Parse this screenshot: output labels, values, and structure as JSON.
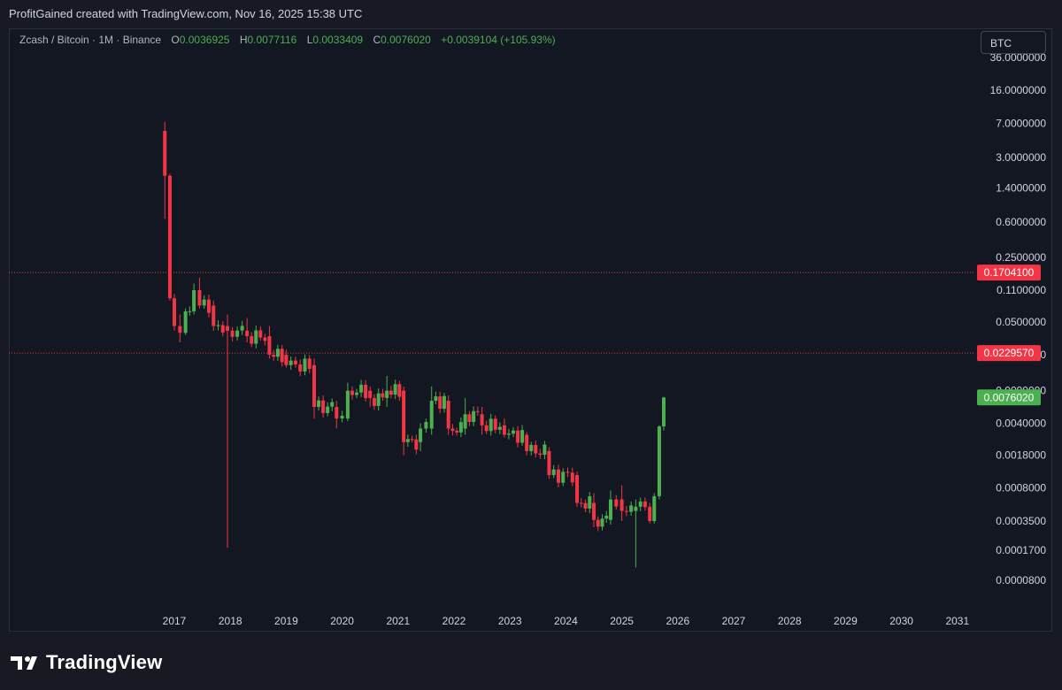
{
  "header": {
    "attribution": "ProfitGained created with TradingView.com, Nov 16, 2025 15:38 UTC"
  },
  "legend": {
    "symbol": "Zcash / Bitcoin · 1M · Binance",
    "o_label": "O",
    "o_value": "0.0036925",
    "h_label": "H",
    "h_value": "0.0077116",
    "l_label": "L",
    "l_value": "0.0033409",
    "c_label": "C",
    "c_value": "0.0076020",
    "change": "+0.0039104 (+105.93%)"
  },
  "currency_button": "BTC",
  "footer": {
    "brand": "TradingView"
  },
  "colors": {
    "up": "#4caf50",
    "down": "#f23645",
    "background": "#131722",
    "text": "#d1d4dc"
  },
  "chart_data": {
    "type": "candlestick",
    "scale": "log",
    "x_axis": {
      "ticks": [
        "2017",
        "2018",
        "2019",
        "2020",
        "2021",
        "2022",
        "2023",
        "2024",
        "2025",
        "2026",
        "2027",
        "2028",
        "2029",
        "2030",
        "2031"
      ]
    },
    "y_axis": {
      "ticks": [
        "36.0000000",
        "16.0000000",
        "7.0000000",
        "3.0000000",
        "1.4000000",
        "0.6000000",
        "0.2500000",
        "0.1100000",
        "0.0500000",
        "0.0220000",
        "0.0090000",
        "0.0040000",
        "0.0018000",
        "0.0008000",
        "0.0003500",
        "0.0001700",
        "0.0000800"
      ]
    },
    "horizontal_lines": [
      {
        "value": 0.17041,
        "label": "0.1704100",
        "color": "#f23645"
      },
      {
        "value": 0.022957,
        "label": "0.0229570",
        "color": "#f23645"
      }
    ],
    "last_price": {
      "value": 0.007602,
      "label": "0.0076020",
      "color": "#4caf50"
    },
    "anchors": [
      {
        "t": 2016.83,
        "o": 5.8,
        "h": 7.3,
        "l": 0.65,
        "c": 1.9
      },
      {
        "t": 2016.92,
        "o": 1.9,
        "h": 2.0,
        "l": 0.085,
        "c": 0.09
      },
      {
        "t": 2017.0,
        "o": 0.09,
        "h": 0.1,
        "l": 0.04,
        "c": 0.045
      },
      {
        "t": 2017.1,
        "o": 0.045,
        "h": 0.06,
        "l": 0.03,
        "c": 0.038
      },
      {
        "t": 2017.2,
        "o": 0.038,
        "h": 0.07,
        "l": 0.036,
        "c": 0.065
      },
      {
        "t": 2017.35,
        "o": 0.065,
        "h": 0.13,
        "l": 0.06,
        "c": 0.11
      },
      {
        "t": 2017.45,
        "o": 0.11,
        "h": 0.15,
        "l": 0.07,
        "c": 0.075
      },
      {
        "t": 2017.7,
        "o": 0.075,
        "h": 0.085,
        "l": 0.04,
        "c": 0.045
      },
      {
        "t": 2017.95,
        "o": 0.045,
        "h": 0.06,
        "l": 0.00018,
        "c": 0.04
      },
      {
        "t": 2018.3,
        "o": 0.04,
        "h": 0.055,
        "l": 0.03,
        "c": 0.035
      },
      {
        "t": 2018.7,
        "o": 0.035,
        "h": 0.045,
        "l": 0.02,
        "c": 0.022
      },
      {
        "t": 2019.0,
        "o": 0.022,
        "h": 0.025,
        "l": 0.016,
        "c": 0.017
      },
      {
        "t": 2019.5,
        "o": 0.017,
        "h": 0.02,
        "l": 0.0045,
        "c": 0.006
      },
      {
        "t": 2019.9,
        "o": 0.006,
        "h": 0.007,
        "l": 0.0035,
        "c": 0.0045
      },
      {
        "t": 2020.1,
        "o": 0.0045,
        "h": 0.011,
        "l": 0.0042,
        "c": 0.009
      },
      {
        "t": 2020.5,
        "o": 0.009,
        "h": 0.01,
        "l": 0.006,
        "c": 0.0075
      },
      {
        "t": 2020.8,
        "o": 0.0075,
        "h": 0.013,
        "l": 0.006,
        "c": 0.009
      },
      {
        "t": 2021.1,
        "o": 0.009,
        "h": 0.01,
        "l": 0.0018,
        "c": 0.0025
      },
      {
        "t": 2021.4,
        "o": 0.0025,
        "h": 0.004,
        "l": 0.002,
        "c": 0.0035
      },
      {
        "t": 2021.6,
        "o": 0.0035,
        "h": 0.01,
        "l": 0.003,
        "c": 0.007
      },
      {
        "t": 2021.9,
        "o": 0.007,
        "h": 0.008,
        "l": 0.003,
        "c": 0.0035
      },
      {
        "t": 2022.2,
        "o": 0.0035,
        "h": 0.0075,
        "l": 0.003,
        "c": 0.005
      },
      {
        "t": 2022.5,
        "o": 0.005,
        "h": 0.006,
        "l": 0.003,
        "c": 0.0038
      },
      {
        "t": 2022.9,
        "o": 0.0038,
        "h": 0.0045,
        "l": 0.0028,
        "c": 0.003
      },
      {
        "t": 2023.3,
        "o": 0.003,
        "h": 0.0032,
        "l": 0.0018,
        "c": 0.002
      },
      {
        "t": 2023.7,
        "o": 0.002,
        "h": 0.0022,
        "l": 0.001,
        "c": 0.0011
      },
      {
        "t": 2024.2,
        "o": 0.0011,
        "h": 0.0012,
        "l": 0.0005,
        "c": 0.00055
      },
      {
        "t": 2024.5,
        "o": 0.00055,
        "h": 0.0007,
        "l": 0.0003,
        "c": 0.00036
      },
      {
        "t": 2024.8,
        "o": 0.00036,
        "h": 0.00075,
        "l": 0.00032,
        "c": 0.0006
      },
      {
        "t": 2025.0,
        "o": 0.0006,
        "h": 0.00085,
        "l": 0.00035,
        "c": 0.00045
      },
      {
        "t": 2025.25,
        "o": 0.00045,
        "h": 0.0006,
        "l": 0.00011,
        "c": 0.0005
      },
      {
        "t": 2025.5,
        "o": 0.0005,
        "h": 0.00055,
        "l": 0.00033,
        "c": 0.00035
      },
      {
        "t": 2025.58,
        "o": 0.00035,
        "h": 0.0007,
        "l": 0.00033,
        "c": 0.00065
      },
      {
        "t": 2025.67,
        "o": 0.00065,
        "h": 0.0038,
        "l": 0.0006,
        "c": 0.0036925
      },
      {
        "t": 2025.75,
        "o": 0.0036925,
        "h": 0.0077116,
        "l": 0.0033409,
        "c": 0.007602
      }
    ]
  }
}
